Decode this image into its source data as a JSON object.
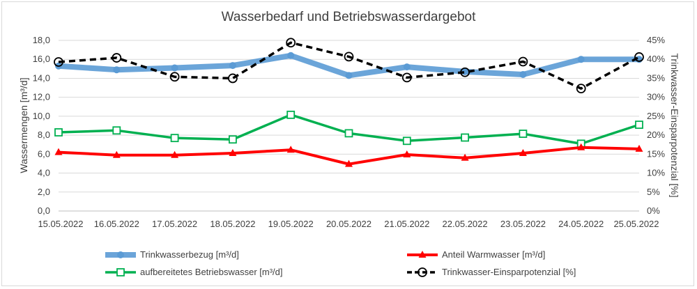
{
  "chart_data": {
    "type": "line",
    "title": "Wasserbedarf und Betriebswasserdargebot",
    "ylabel": "Wassermengen [m³/d]",
    "y2label": "Trinkwasser-Einsparpotenzial [%]",
    "xlabel": "",
    "categories": [
      "15.05.2022",
      "16.05.2022",
      "17.05.2022",
      "18.05.2022",
      "19.05.2022",
      "20.05.2022",
      "21.05.2022",
      "22.05.2022",
      "23.05.2022",
      "24.05.2022",
      "25.05.2022"
    ],
    "ylim": [
      0,
      18
    ],
    "y_ticks": [
      "0,0",
      "2,0",
      "4,0",
      "6,0",
      "8,0",
      "10,0",
      "12,0",
      "14,0",
      "16,0",
      "18,0"
    ],
    "y2lim": [
      0,
      45
    ],
    "y2_ticks": [
      "0%",
      "5%",
      "10%",
      "15%",
      "20%",
      "25%",
      "30%",
      "35%",
      "40%",
      "45%"
    ],
    "grid": "horizontal",
    "legend_position": "bottom",
    "series": [
      {
        "name": "Trinkwasserbezug [m³/d]",
        "axis": "left",
        "color": "#5b9bd5",
        "marker": "circle",
        "values": [
          15.3,
          14.9,
          15.1,
          15.35,
          16.4,
          14.3,
          15.2,
          14.7,
          14.4,
          16.0,
          16.0
        ]
      },
      {
        "name": "Anteil Warmwasser [m³/d]",
        "axis": "left",
        "color": "#ff0000",
        "marker": "triangle",
        "values": [
          6.2,
          5.9,
          5.9,
          6.1,
          6.45,
          4.95,
          5.95,
          5.6,
          6.1,
          6.7,
          6.55
        ]
      },
      {
        "name": "aufbereitetes Betriebswasser [m³/d]",
        "axis": "left",
        "color": "#00b050",
        "marker": "square",
        "values": [
          8.3,
          8.5,
          7.7,
          7.55,
          10.15,
          8.2,
          7.4,
          7.75,
          8.15,
          7.1,
          9.1
        ]
      },
      {
        "name": "Trinkwasser-Einsparpotenzial [%]",
        "axis": "right",
        "color": "#000000",
        "marker": "open-circle",
        "dashed": true,
        "values": [
          39.3,
          40.4,
          35.4,
          35.0,
          44.4,
          40.7,
          35.2,
          36.6,
          39.4,
          32.3,
          40.6
        ]
      }
    ]
  }
}
